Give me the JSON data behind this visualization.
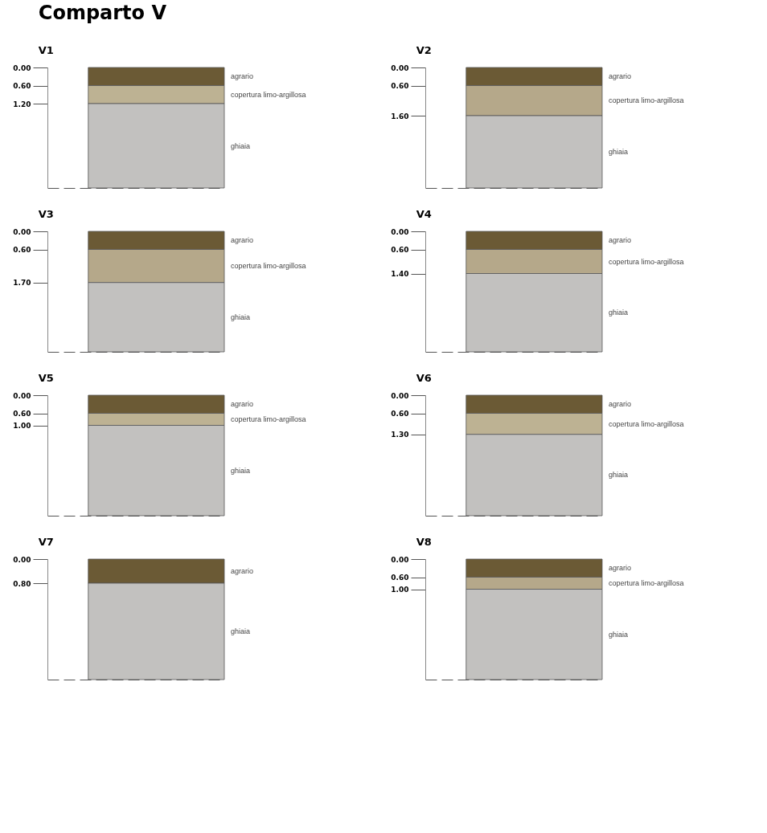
{
  "chart_data": [
    {
      "type": "bar",
      "title": "Comparto V",
      "subtitle": "V1",
      "stacked": true,
      "categories": [
        null
      ],
      "legend": false,
      "grid": false,
      "tick_labels": "y",
      "ylim": [
        4.0,
        0
      ],
      "yticks": [
        {
          "value": 0,
          "label": "0.00"
        },
        {
          "value": 0.6,
          "label": "0.60"
        },
        {
          "value": 1.2,
          "label": "1.20"
        }
      ],
      "series": [
        {
          "name": "agrario",
          "color": "#6b5a35",
          "values": [
            0.6
          ]
        },
        {
          "name": "copertura limo-argillosa",
          "color": "#bdb293",
          "values": [
            0.6
          ]
        },
        {
          "name": "ghiaia",
          "color": "#c2c1bf",
          "values": [
            2.8
          ]
        }
      ]
    },
    {
      "type": "bar",
      "title": "V2",
      "stacked": true,
      "categories": [
        null
      ],
      "legend": false,
      "grid": false,
      "tick_labels": "y",
      "ylim": [
        4.0,
        0
      ],
      "yticks": [
        {
          "value": 0,
          "label": "0.00"
        },
        {
          "value": 0.6,
          "label": "0.60"
        },
        {
          "value": 1.6,
          "label": "1.60"
        }
      ],
      "series": [
        {
          "name": "agrario",
          "color": "#6b5a35",
          "values": [
            0.6
          ]
        },
        {
          "name": "copertura limo-argillosa",
          "color": "#b5a88a",
          "values": [
            1.0
          ]
        },
        {
          "name": "ghiaia",
          "color": "#c2c1bf",
          "values": [
            2.4
          ]
        }
      ]
    },
    {
      "type": "bar",
      "title": "V3",
      "stacked": true,
      "categories": [
        null
      ],
      "legend": false,
      "grid": false,
      "tick_labels": "y",
      "ylim": [
        4.0,
        0
      ],
      "yticks": [
        {
          "value": 0,
          "label": "0.00"
        },
        {
          "value": 0.6,
          "label": "0.60"
        },
        {
          "value": 1.7,
          "label": "1.70"
        }
      ],
      "series": [
        {
          "name": "agrario",
          "color": "#6b5a35",
          "values": [
            0.6
          ]
        },
        {
          "name": "copertura limo-argillosa",
          "color": "#b5a88a",
          "values": [
            1.1
          ]
        },
        {
          "name": "ghiaia",
          "color": "#c2c1bf",
          "values": [
            2.3
          ]
        }
      ]
    },
    {
      "type": "bar",
      "title": "V4",
      "stacked": true,
      "categories": [
        null
      ],
      "legend": false,
      "grid": false,
      "tick_labels": "y",
      "ylim": [
        4.0,
        0
      ],
      "yticks": [
        {
          "value": 0,
          "label": "0.00"
        },
        {
          "value": 0.6,
          "label": "0.60"
        },
        {
          "value": 1.4,
          "label": "1.40"
        }
      ],
      "series": [
        {
          "name": "agrario",
          "color": "#6b5a35",
          "values": [
            0.6
          ]
        },
        {
          "name": "copertura limo-argillosa",
          "color": "#b5a88a",
          "values": [
            0.8
          ]
        },
        {
          "name": "ghiaia",
          "color": "#c2c1bf",
          "values": [
            2.6
          ]
        }
      ]
    },
    {
      "type": "bar",
      "title": "V5",
      "stacked": true,
      "categories": [
        null
      ],
      "legend": false,
      "grid": false,
      "tick_labels": "y",
      "ylim": [
        4.0,
        0
      ],
      "yticks": [
        {
          "value": 0,
          "label": "0.00"
        },
        {
          "value": 0.6,
          "label": "0.60"
        },
        {
          "value": 1.0,
          "label": "1.00"
        }
      ],
      "series": [
        {
          "name": "agrario",
          "color": "#6b5a35",
          "values": [
            0.6
          ]
        },
        {
          "name": "copertura limo-argillosa",
          "color": "#bdb293",
          "values": [
            0.4
          ]
        },
        {
          "name": "ghiaia",
          "color": "#c2c1bf",
          "values": [
            3.0
          ]
        }
      ]
    },
    {
      "type": "bar",
      "title": "V6",
      "stacked": true,
      "categories": [
        null
      ],
      "legend": false,
      "grid": false,
      "tick_labels": "y",
      "ylim": [
        4.0,
        0
      ],
      "yticks": [
        {
          "value": 0,
          "label": "0.00"
        },
        {
          "value": 0.6,
          "label": "0.60"
        },
        {
          "value": 1.3,
          "label": "1.30"
        }
      ],
      "series": [
        {
          "name": "agrario",
          "color": "#6b5a35",
          "values": [
            0.6
          ]
        },
        {
          "name": "copertura limo-argillosa",
          "color": "#bdb293",
          "values": [
            0.7
          ]
        },
        {
          "name": "ghiaia",
          "color": "#c2c1bf",
          "values": [
            2.7
          ]
        }
      ]
    },
    {
      "type": "bar",
      "title": "V7",
      "stacked": true,
      "categories": [
        null
      ],
      "legend": false,
      "grid": false,
      "tick_labels": "y",
      "ylim": [
        4.0,
        0
      ],
      "yticks": [
        {
          "value": 0,
          "label": "0.00"
        },
        {
          "value": 0.8,
          "label": "0.80"
        }
      ],
      "series": [
        {
          "name": "agrario",
          "color": "#6b5a35",
          "values": [
            0.8
          ]
        },
        {
          "name": "ghiaia",
          "color": "#c2c1bf",
          "values": [
            3.2
          ]
        }
      ]
    },
    {
      "type": "bar",
      "title": "V8",
      "stacked": true,
      "categories": [
        null
      ],
      "legend": false,
      "grid": false,
      "tick_labels": "y",
      "ylim": [
        4.0,
        0
      ],
      "yticks": [
        {
          "value": 0,
          "label": "0.00"
        },
        {
          "value": 0.6,
          "label": "0.60"
        },
        {
          "value": 1.0,
          "label": "1.00"
        }
      ],
      "series": [
        {
          "name": "agrario",
          "color": "#6b5a35",
          "values": [
            0.6
          ]
        },
        {
          "name": "copertura limo-argillosa",
          "color": "#b5a88a",
          "values": [
            0.4
          ]
        },
        {
          "name": "ghiaia",
          "color": "#c2c1bf",
          "values": [
            3.0
          ]
        }
      ]
    }
  ]
}
